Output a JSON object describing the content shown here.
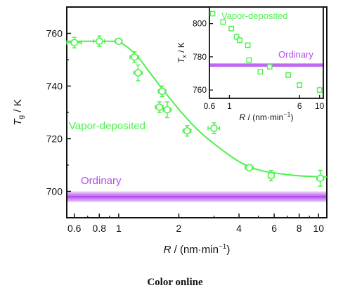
{
  "caption": "Color online",
  "colors": {
    "vapor": "#4ef04e",
    "ordinary": "#b44cf0",
    "axis": "#111111"
  },
  "chart_data": [
    {
      "type": "scatter",
      "xscale": "log",
      "xlim": [
        0.55,
        11
      ],
      "ylim": [
        690,
        770
      ],
      "xlabel": "R / (nm·min−1)",
      "ylabel": "Tg / K",
      "xticks": [
        0.6,
        0.8,
        1,
        2,
        4,
        6,
        8,
        10
      ],
      "xtick_labels": [
        "0.6",
        "0.8",
        "1",
        "2",
        "4",
        "6",
        "8",
        "10"
      ],
      "yticks": [
        700,
        720,
        740,
        760
      ],
      "series": [
        {
          "name": "Vapor-deposited",
          "points": [
            {
              "x": 0.6,
              "y": 756.5,
              "xerr": 0.05,
              "yerr": 2
            },
            {
              "x": 0.8,
              "y": 757,
              "xerr": 0.05,
              "yerr": 2
            },
            {
              "x": 1.0,
              "y": 757,
              "xerr": 0.04,
              "yerr": 1
            },
            {
              "x": 1.2,
              "y": 751,
              "xerr": 0.06,
              "yerr": 2
            },
            {
              "x": 1.25,
              "y": 745,
              "xerr": 0.06,
              "yerr": 3
            },
            {
              "x": 1.6,
              "y": 732,
              "xerr": 0.07,
              "yerr": 2
            },
            {
              "x": 1.65,
              "y": 738,
              "xerr": 0.07,
              "yerr": 2
            },
            {
              "x": 1.75,
              "y": 731,
              "xerr": 0.08,
              "yerr": 3
            },
            {
              "x": 2.2,
              "y": 723,
              "xerr": 0.1,
              "yerr": 2
            },
            {
              "x": 3.0,
              "y": 724,
              "xerr": 0.2,
              "yerr": 2
            },
            {
              "x": 4.5,
              "y": 709,
              "xerr": 0.2,
              "yerr": 1
            },
            {
              "x": 5.8,
              "y": 706,
              "xerr": 0.2,
              "yerr": 2
            },
            {
              "x": 10.2,
              "y": 705,
              "xerr": 0.4,
              "yerr": 3
            }
          ],
          "fit": [
            [
              1.0,
              757
            ],
            [
              1.2,
              753
            ],
            [
              1.5,
              743
            ],
            [
              2,
              731
            ],
            [
              2.5,
              723
            ],
            [
              3,
              718
            ],
            [
              4,
              711
            ],
            [
              5,
              708
            ],
            [
              6,
              707
            ],
            [
              8,
              705.8
            ],
            [
              11,
              705.5
            ]
          ]
        },
        {
          "name": "Ordinary",
          "band": {
            "y": 698,
            "half_width": 2
          }
        }
      ]
    },
    {
      "type": "scatter",
      "xscale": "log",
      "xlim": [
        0.6,
        11
      ],
      "ylim": [
        755,
        810
      ],
      "xlabel": "R / (nm·min−1)",
      "ylabel": "Tx / K",
      "xticks": [
        0.6,
        1,
        6,
        10
      ],
      "xtick_labels": [
        "0.6",
        "1",
        "6",
        "10"
      ],
      "yticks": [
        760,
        780,
        800
      ],
      "series": [
        {
          "name": "Vapor-deposited",
          "points": [
            {
              "x": 0.65,
              "y": 806,
              "yerr": 0
            },
            {
              "x": 0.85,
              "y": 801,
              "yerr": 0
            },
            {
              "x": 1.05,
              "y": 797,
              "yerr": 1
            },
            {
              "x": 1.2,
              "y": 792,
              "yerr": 2
            },
            {
              "x": 1.3,
              "y": 790,
              "yerr": 2
            },
            {
              "x": 1.6,
              "y": 787,
              "yerr": 1
            },
            {
              "x": 1.65,
              "y": 778,
              "yerr": 1
            },
            {
              "x": 2.2,
              "y": 771,
              "yerr": 1
            },
            {
              "x": 2.8,
              "y": 774,
              "yerr": 1
            },
            {
              "x": 4.5,
              "y": 769,
              "yerr": 1
            },
            {
              "x": 6.0,
              "y": 763,
              "yerr": 1
            },
            {
              "x": 10.0,
              "y": 760,
              "yerr": 2
            }
          ]
        },
        {
          "name": "Ordinary",
          "band": {
            "y": 775,
            "half_width": 1
          }
        }
      ]
    }
  ]
}
